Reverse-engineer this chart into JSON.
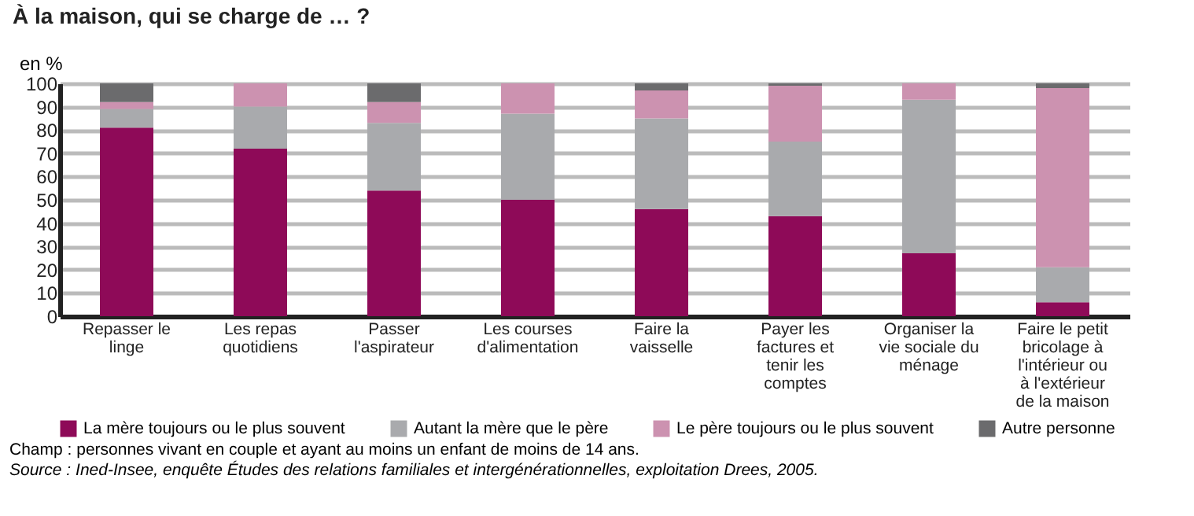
{
  "chart_data": {
    "type": "bar",
    "title": "À la maison, qui se charge de … ?",
    "ylabel": "en %",
    "categories": [
      "Repasser le linge",
      "Les repas quotidiens",
      "Passer l'aspirateur",
      "Les courses d'alimentation",
      "Faire la vaisselle",
      "Payer les factures et tenir les comptes",
      "Organiser la vie sociale du ménage",
      "Faire le petit bricolage à l'intérieur ou à l'extérieur de la maison"
    ],
    "series": [
      {
        "name": "La mère toujours ou le plus souvent",
        "color": "#8e0a58",
        "values": [
          81,
          72,
          54,
          50,
          46,
          43,
          27,
          6
        ]
      },
      {
        "name": "Autant la mère que le père",
        "color": "#a9aaad",
        "values": [
          8,
          18,
          29,
          37,
          39,
          32,
          66,
          15
        ]
      },
      {
        "name": "Le père toujours ou le plus souvent",
        "color": "#cc92b0",
        "values": [
          3,
          10,
          9,
          13,
          12,
          24,
          7,
          77
        ]
      },
      {
        "name": "Autre personne",
        "color": "#6b6b6d",
        "values": [
          8,
          0,
          8,
          0,
          3,
          1,
          0,
          2
        ]
      }
    ],
    "stacked": true,
    "ylim": [
      0,
      100
    ],
    "yticks": [
      0,
      10,
      20,
      30,
      40,
      50,
      60,
      70,
      80,
      90,
      100
    ],
    "grid": "y",
    "legend": "bottom",
    "annotations": [
      "Champ : personnes vivant en couple et ayant au moins un enfant de moins de 14 ans.",
      "Source :  Ined-Insee, enquête Études des relations familiales et intergénérationnelles, exploitation Drees, 2005."
    ]
  }
}
